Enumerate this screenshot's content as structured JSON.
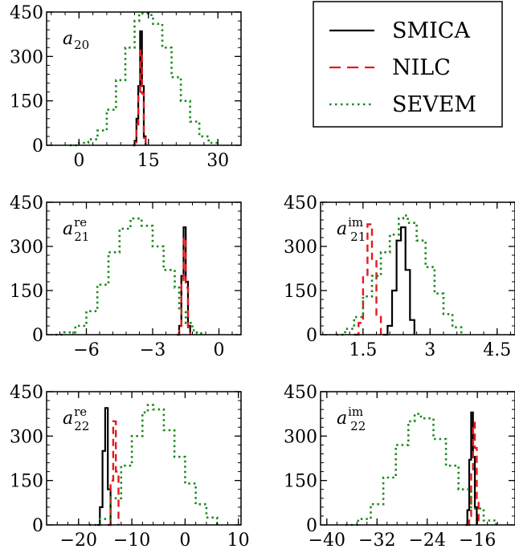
{
  "colors": {
    "SMICA": "#000000",
    "NILC": "#e41a1c",
    "SEVEM": "#1a8a1a"
  },
  "legend": {
    "placement": "top-right",
    "entries": [
      "SMICA",
      "NILC",
      "SEVEM"
    ]
  },
  "chart_data": [
    {
      "type": "line",
      "label": {
        "base": "a",
        "sub": "20",
        "sup": ""
      },
      "xlim": [
        -7,
        35
      ],
      "ylim": [
        0,
        450
      ],
      "xticks": [
        0,
        15,
        30
      ],
      "yticks": [
        0,
        150,
        300,
        450
      ],
      "series": [
        {
          "name": "SMICA",
          "x": [
            11.6,
            12.0,
            12.4,
            12.8,
            13.2,
            13.6,
            14.0,
            14.4
          ],
          "y": [
            0,
            15,
            90,
            200,
            385,
            200,
            30,
            0
          ]
        },
        {
          "name": "NILC",
          "x": [
            11.6,
            12.0,
            12.4,
            12.8,
            13.2,
            13.6,
            14.0,
            14.4
          ],
          "y": [
            0,
            10,
            70,
            180,
            320,
            175,
            25,
            0
          ]
        },
        {
          "name": "SEVEM",
          "x": [
            -2,
            0,
            2,
            4,
            6,
            8,
            10,
            12,
            13,
            14,
            15,
            16,
            18,
            20,
            22,
            24,
            26,
            28,
            30
          ],
          "y": [
            0,
            8,
            20,
            50,
            120,
            220,
            330,
            420,
            445,
            445,
            440,
            410,
            330,
            230,
            150,
            80,
            30,
            8,
            0
          ]
        }
      ]
    },
    {
      "type": "line",
      "label": {
        "base": "a",
        "sub": "21",
        "sup": "re"
      },
      "xlim": [
        -7.8,
        1.0
      ],
      "ylim": [
        0,
        450
      ],
      "xticks": [
        -6,
        -3,
        0
      ],
      "yticks": [
        0,
        150,
        300,
        450
      ],
      "series": [
        {
          "name": "SMICA",
          "x": [
            -1.9,
            -1.8,
            -1.7,
            -1.6,
            -1.5,
            -1.4,
            -1.3
          ],
          "y": [
            0,
            30,
            200,
            365,
            180,
            30,
            0
          ]
        },
        {
          "name": "NILC",
          "x": [
            -1.9,
            -1.8,
            -1.7,
            -1.6,
            -1.5,
            -1.4,
            -1.3
          ],
          "y": [
            0,
            25,
            170,
            330,
            160,
            25,
            0
          ]
        },
        {
          "name": "SEVEM",
          "x": [
            -7.4,
            -7.0,
            -6.5,
            -6.0,
            -5.5,
            -5.0,
            -4.5,
            -4.0,
            -3.5,
            -3.0,
            -2.5,
            -2.0,
            -1.8,
            -1.5,
            -1.2,
            -1.0,
            -0.7
          ],
          "y": [
            0,
            8,
            30,
            80,
            170,
            280,
            360,
            395,
            370,
            300,
            220,
            160,
            80,
            40,
            15,
            5,
            0
          ]
        }
      ]
    },
    {
      "type": "line",
      "label": {
        "base": "a",
        "sub": "21",
        "sup": "im"
      },
      "xlim": [
        0.55,
        4.9
      ],
      "ylim": [
        0,
        450
      ],
      "xticks": [
        1.5,
        3.0,
        4.5
      ],
      "yticks": [
        0,
        150,
        300,
        450
      ],
      "series": [
        {
          "name": "SMICA",
          "x": [
            1.95,
            2.05,
            2.15,
            2.25,
            2.35,
            2.45,
            2.55,
            2.65
          ],
          "y": [
            0,
            30,
            150,
            320,
            365,
            220,
            50,
            0
          ]
        },
        {
          "name": "NILC",
          "x": [
            1.3,
            1.4,
            1.5,
            1.6,
            1.7,
            1.8,
            1.9
          ],
          "y": [
            0,
            40,
            200,
            375,
            250,
            60,
            0
          ]
        },
        {
          "name": "SEVEM",
          "x": [
            0.9,
            1.1,
            1.3,
            1.5,
            1.7,
            1.9,
            2.1,
            2.3,
            2.4,
            2.5,
            2.7,
            2.9,
            3.1,
            3.3,
            3.5,
            3.7
          ],
          "y": [
            0,
            20,
            60,
            130,
            200,
            280,
            340,
            395,
            405,
            380,
            320,
            230,
            140,
            70,
            25,
            0
          ]
        }
      ]
    },
    {
      "type": "line",
      "label": {
        "base": "a",
        "sub": "22",
        "sup": "re"
      },
      "xlim": [
        -26,
        10.5
      ],
      "ylim": [
        0,
        450
      ],
      "xticks": [
        -20,
        -10,
        0,
        10
      ],
      "yticks": [
        0,
        150,
        300,
        450
      ],
      "series": [
        {
          "name": "SMICA",
          "x": [
            -16.5,
            -16.0,
            -15.5,
            -15.0,
            -14.5,
            -14.0
          ],
          "y": [
            0,
            60,
            250,
            395,
            120,
            0
          ]
        },
        {
          "name": "NILC",
          "x": [
            -14.5,
            -14.0,
            -13.5,
            -13.0,
            -12.5
          ],
          "y": [
            0,
            150,
            350,
            180,
            0
          ]
        },
        {
          "name": "SEVEM",
          "x": [
            -18,
            -16,
            -14,
            -12,
            -10,
            -8,
            -7,
            -6,
            -4,
            -2,
            0,
            2,
            4,
            6
          ],
          "y": [
            0,
            20,
            90,
            200,
            300,
            380,
            405,
            390,
            320,
            230,
            140,
            70,
            25,
            0
          ]
        }
      ]
    },
    {
      "type": "line",
      "label": {
        "base": "a",
        "sub": "22",
        "sup": "im"
      },
      "xlim": [
        -41,
        -10
      ],
      "ylim": [
        0,
        450
      ],
      "xticks": [
        -40,
        -32,
        -24,
        -16
      ],
      "yticks": [
        0,
        150,
        300,
        450
      ],
      "series": [
        {
          "name": "SMICA",
          "x": [
            -17.9,
            -17.6,
            -17.3,
            -17.0,
            -16.7,
            -16.4,
            -16.1
          ],
          "y": [
            0,
            50,
            220,
            380,
            230,
            60,
            0
          ]
        },
        {
          "name": "NILC",
          "x": [
            -17.6,
            -17.3,
            -17.0,
            -16.7,
            -16.4,
            -16.1,
            -15.8
          ],
          "y": [
            0,
            30,
            180,
            345,
            260,
            80,
            0
          ]
        },
        {
          "name": "SEVEM",
          "x": [
            -37,
            -35,
            -33,
            -31,
            -29,
            -27,
            -26,
            -25,
            -23,
            -21,
            -19,
            -17,
            -15,
            -13
          ],
          "y": [
            0,
            20,
            70,
            160,
            270,
            350,
            375,
            360,
            290,
            200,
            120,
            55,
            15,
            0
          ]
        }
      ]
    }
  ]
}
